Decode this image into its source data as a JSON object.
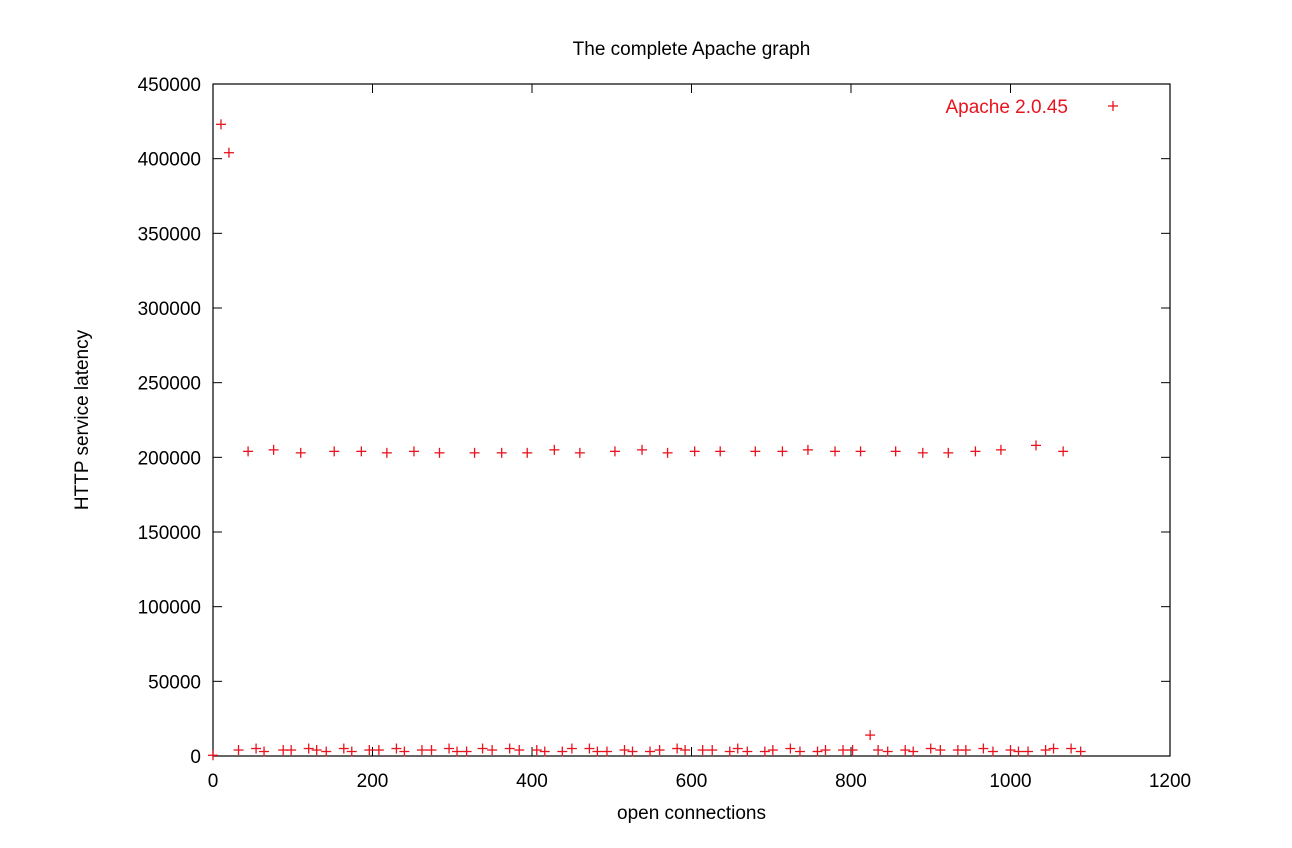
{
  "chart_data": {
    "type": "scatter",
    "title": "The complete Apache graph",
    "xlabel": "open connections",
    "ylabel": "HTTP service latency",
    "xlim": [
      0,
      1200
    ],
    "ylim": [
      0,
      450000
    ],
    "xticks": [
      "0",
      "200",
      "400",
      "600",
      "800",
      "1000",
      "1200"
    ],
    "yticks": [
      "0",
      "50000",
      "100000",
      "150000",
      "200000",
      "250000",
      "300000",
      "350000",
      "400000",
      "450000"
    ],
    "grid": false,
    "legend_position": "top-right",
    "marker": "plus",
    "colors": {
      "series": "#e8131e",
      "axis": "#000000"
    },
    "series": [
      {
        "name": "Apache 2.0.45",
        "x": [
          0,
          10,
          20,
          32,
          44,
          54,
          64,
          76,
          88,
          98,
          110,
          120,
          130,
          142,
          152,
          164,
          174,
          186,
          196,
          208,
          218,
          230,
          240,
          252,
          262,
          274,
          284,
          296,
          306,
          318,
          328,
          338,
          350,
          362,
          372,
          384,
          394,
          406,
          416,
          428,
          438,
          450,
          460,
          472,
          482,
          494,
          504,
          516,
          526,
          538,
          548,
          560,
          570,
          582,
          592,
          604,
          614,
          626,
          636,
          648,
          658,
          670,
          680,
          692,
          702,
          714,
          724,
          736,
          746,
          758,
          768,
          780,
          790,
          802,
          812,
          824,
          834,
          846,
          856,
          868,
          878,
          890,
          900,
          912,
          922,
          934,
          944,
          956,
          966,
          978,
          988,
          1000,
          1010,
          1022,
          1032,
          1044,
          1054,
          1066,
          1076,
          1088
        ],
        "y": [
          500,
          423000,
          404000,
          4000,
          204000,
          5000,
          3000,
          205000,
          4000,
          4000,
          203000,
          5000,
          4000,
          3000,
          204000,
          5000,
          3000,
          204000,
          4000,
          4000,
          203000,
          5000,
          3000,
          204000,
          4000,
          4000,
          203000,
          5000,
          3000,
          3000,
          203000,
          5000,
          4000,
          203000,
          5000,
          4000,
          203000,
          4000,
          3000,
          205000,
          3000,
          5000,
          203000,
          5000,
          3000,
          3000,
          204000,
          4000,
          3000,
          205000,
          3000,
          4000,
          203000,
          5000,
          4000,
          204000,
          4000,
          4000,
          204000,
          3000,
          5000,
          3000,
          204000,
          3000,
          4000,
          204000,
          5000,
          3000,
          205000,
          3000,
          4000,
          204000,
          4000,
          4000,
          204000,
          14000,
          4000,
          3000,
          204000,
          4000,
          3000,
          203000,
          5000,
          4000,
          203000,
          4000,
          4000,
          204000,
          5000,
          3000,
          205000,
          4000,
          3000,
          3000,
          208000,
          4000,
          5000,
          204000,
          5000,
          3000
        ]
      }
    ]
  }
}
